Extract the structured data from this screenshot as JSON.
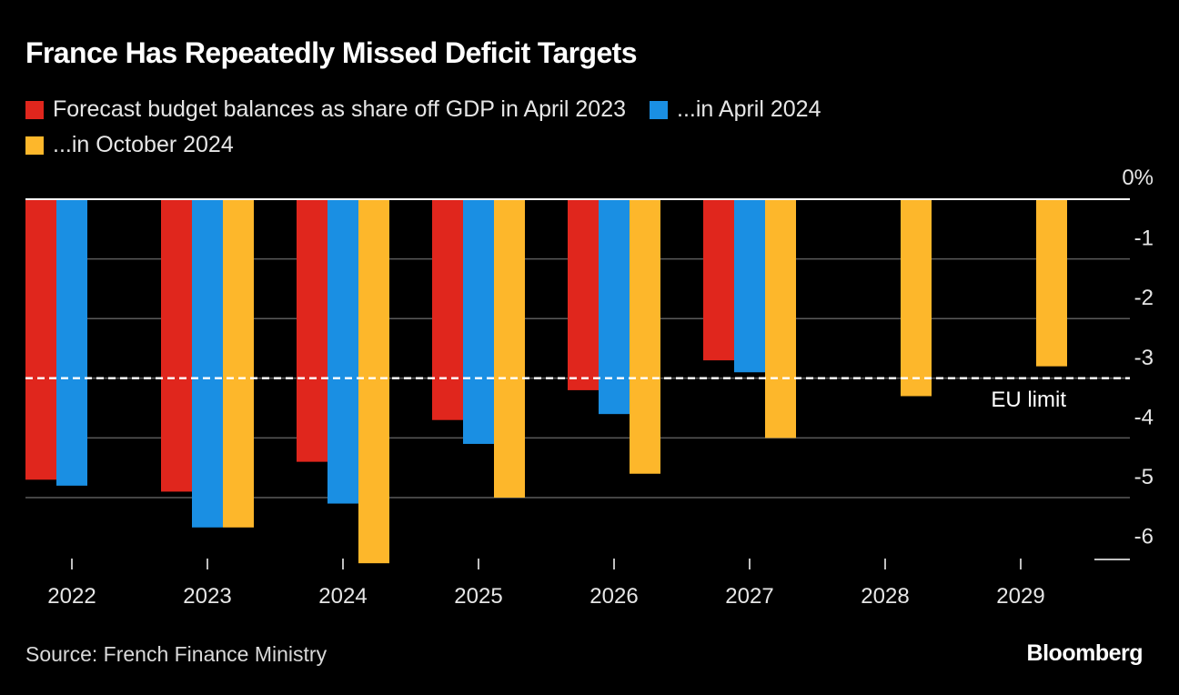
{
  "colors": {
    "background": "#000000",
    "april_2023": "#e0261d",
    "april_2024": "#1a8fe3",
    "october_2024": "#fdb72b",
    "gridline": "#5a5a5a",
    "text": "#ffffff"
  },
  "chart_data": {
    "type": "bar",
    "title": "France Has Repeatedly Missed Deficit Targets",
    "categories": [
      "2022",
      "2023",
      "2024",
      "2025",
      "2026",
      "2027",
      "2028",
      "2029"
    ],
    "series": [
      {
        "name": "Forecast budget balances as share off GDP in April 2023",
        "values": [
          -4.7,
          -4.9,
          -4.4,
          -3.7,
          -3.2,
          -2.7,
          null,
          null
        ]
      },
      {
        "name": "...in April 2024",
        "values": [
          -4.8,
          -5.5,
          -5.1,
          -4.1,
          -3.6,
          -2.9,
          null,
          null
        ]
      },
      {
        "name": "...in October 2024",
        "values": [
          null,
          -5.5,
          -6.1,
          -5.0,
          -4.6,
          -4.0,
          -3.3,
          -2.8
        ]
      }
    ],
    "y_ticks": [
      "0%",
      "-1",
      "-2",
      "-3",
      "-4",
      "-5",
      "-6"
    ],
    "ylim": [
      -6.1,
      0
    ],
    "reference_line": {
      "value": -3,
      "label": "EU limit"
    },
    "xlabel": "",
    "ylabel": ""
  },
  "footer": {
    "source": "Source: French Finance Ministry",
    "brand": "Bloomberg"
  }
}
